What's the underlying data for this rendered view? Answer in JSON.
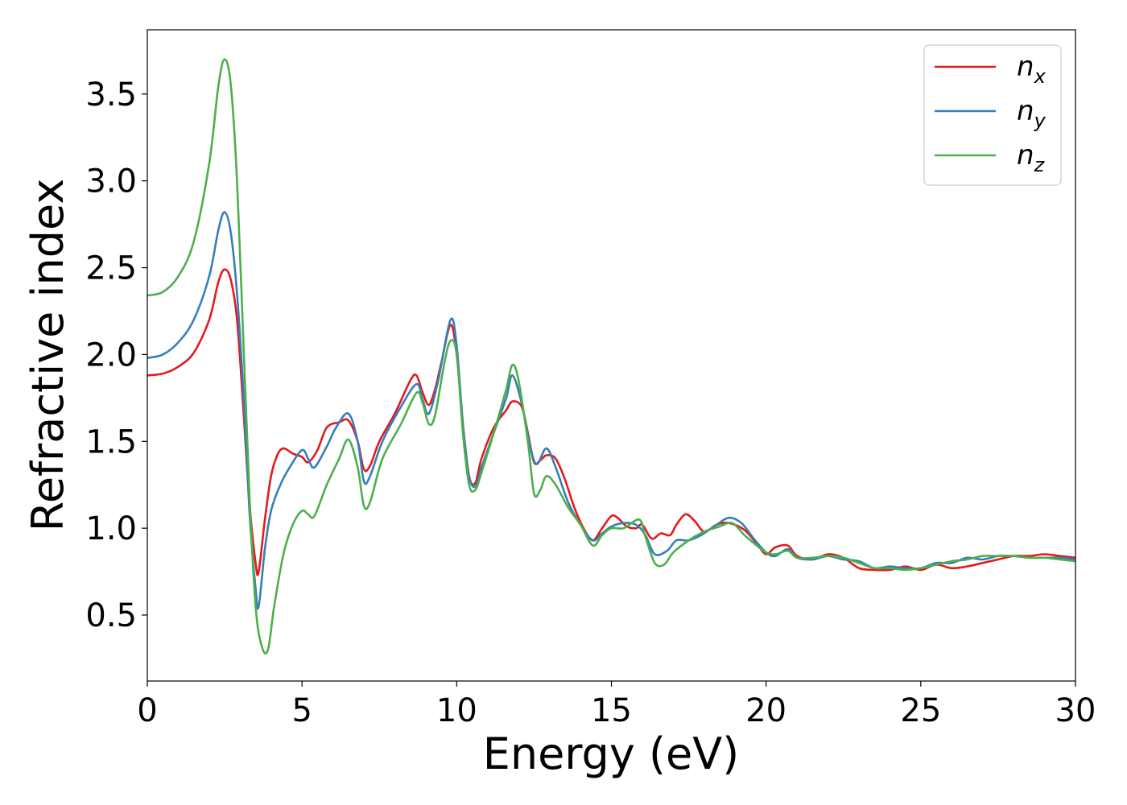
{
  "chart_data": {
    "type": "line",
    "title": "",
    "xlabel": "Energy (eV)",
    "ylabel": "Refractive index",
    "xlim": [
      0,
      30
    ],
    "ylim": [
      0.12,
      3.87
    ],
    "xticks": [
      0,
      5,
      10,
      15,
      20,
      25,
      30
    ],
    "yticks": [
      0.5,
      1.0,
      1.5,
      2.0,
      2.5,
      3.0,
      3.5
    ],
    "xtick_labels": [
      "0",
      "5",
      "10",
      "15",
      "20",
      "25",
      "30"
    ],
    "ytick_labels": [
      "0.5",
      "1.0",
      "1.5",
      "2.0",
      "2.5",
      "3.0",
      "3.5"
    ],
    "grid": false,
    "legend_position": "top-right",
    "series": [
      {
        "name": "n_x",
        "legend_base": "n",
        "legend_sub": "x",
        "color": "#e41a1c",
        "points": [
          [
            0,
            1.88
          ],
          [
            0.5,
            1.89
          ],
          [
            1.0,
            1.93
          ],
          [
            1.5,
            2.01
          ],
          [
            2.0,
            2.2
          ],
          [
            2.3,
            2.42
          ],
          [
            2.5,
            2.49
          ],
          [
            2.7,
            2.43
          ],
          [
            2.9,
            2.2
          ],
          [
            3.1,
            1.7
          ],
          [
            3.3,
            1.15
          ],
          [
            3.5,
            0.8
          ],
          [
            3.6,
            0.75
          ],
          [
            3.8,
            1.05
          ],
          [
            4.0,
            1.3
          ],
          [
            4.2,
            1.42
          ],
          [
            4.4,
            1.46
          ],
          [
            4.7,
            1.43
          ],
          [
            5.0,
            1.41
          ],
          [
            5.2,
            1.38
          ],
          [
            5.5,
            1.45
          ],
          [
            5.8,
            1.58
          ],
          [
            6.2,
            1.61
          ],
          [
            6.5,
            1.62
          ],
          [
            6.8,
            1.5
          ],
          [
            7.0,
            1.34
          ],
          [
            7.2,
            1.36
          ],
          [
            7.5,
            1.5
          ],
          [
            8.0,
            1.66
          ],
          [
            8.5,
            1.85
          ],
          [
            8.7,
            1.88
          ],
          [
            8.9,
            1.78
          ],
          [
            9.1,
            1.71
          ],
          [
            9.3,
            1.8
          ],
          [
            9.5,
            1.95
          ],
          [
            9.8,
            2.17
          ],
          [
            10.0,
            2.0
          ],
          [
            10.2,
            1.6
          ],
          [
            10.4,
            1.3
          ],
          [
            10.6,
            1.26
          ],
          [
            10.8,
            1.4
          ],
          [
            11.2,
            1.58
          ],
          [
            11.6,
            1.68
          ],
          [
            11.8,
            1.73
          ],
          [
            12.1,
            1.7
          ],
          [
            12.3,
            1.55
          ],
          [
            12.5,
            1.38
          ],
          [
            12.7,
            1.39
          ],
          [
            12.9,
            1.42
          ],
          [
            13.2,
            1.4
          ],
          [
            13.5,
            1.28
          ],
          [
            13.8,
            1.12
          ],
          [
            14.1,
            1.0
          ],
          [
            14.4,
            0.93
          ],
          [
            14.7,
            1.0
          ],
          [
            15.0,
            1.07
          ],
          [
            15.2,
            1.06
          ],
          [
            15.5,
            1.01
          ],
          [
            15.8,
            1.0
          ],
          [
            16.0,
            1.02
          ],
          [
            16.3,
            0.94
          ],
          [
            16.6,
            0.97
          ],
          [
            16.9,
            0.96
          ],
          [
            17.1,
            1.02
          ],
          [
            17.4,
            1.08
          ],
          [
            17.7,
            1.04
          ],
          [
            18.0,
            0.98
          ],
          [
            18.4,
            1.02
          ],
          [
            18.8,
            1.03
          ],
          [
            19.3,
            0.99
          ],
          [
            19.7,
            0.91
          ],
          [
            20.0,
            0.85
          ],
          [
            20.3,
            0.89
          ],
          [
            20.7,
            0.9
          ],
          [
            21.0,
            0.84
          ],
          [
            21.5,
            0.82
          ],
          [
            22.0,
            0.85
          ],
          [
            22.5,
            0.83
          ],
          [
            23.0,
            0.77
          ],
          [
            23.5,
            0.76
          ],
          [
            24.0,
            0.76
          ],
          [
            24.5,
            0.78
          ],
          [
            25.0,
            0.76
          ],
          [
            25.5,
            0.79
          ],
          [
            26.0,
            0.77
          ],
          [
            26.5,
            0.78
          ],
          [
            27.0,
            0.8
          ],
          [
            27.5,
            0.82
          ],
          [
            28.0,
            0.84
          ],
          [
            28.5,
            0.84
          ],
          [
            29.0,
            0.85
          ],
          [
            29.5,
            0.84
          ],
          [
            30.0,
            0.83
          ]
        ]
      },
      {
        "name": "n_y",
        "legend_base": "n",
        "legend_sub": "y",
        "color": "#377eb8",
        "points": [
          [
            0,
            1.98
          ],
          [
            0.5,
            2.0
          ],
          [
            1.0,
            2.07
          ],
          [
            1.5,
            2.2
          ],
          [
            2.0,
            2.45
          ],
          [
            2.3,
            2.72
          ],
          [
            2.5,
            2.82
          ],
          [
            2.7,
            2.7
          ],
          [
            2.9,
            2.35
          ],
          [
            3.1,
            1.8
          ],
          [
            3.3,
            1.1
          ],
          [
            3.5,
            0.65
          ],
          [
            3.6,
            0.55
          ],
          [
            3.8,
            0.88
          ],
          [
            4.0,
            1.1
          ],
          [
            4.3,
            1.25
          ],
          [
            4.6,
            1.35
          ],
          [
            5.0,
            1.45
          ],
          [
            5.2,
            1.4
          ],
          [
            5.4,
            1.35
          ],
          [
            5.8,
            1.47
          ],
          [
            6.1,
            1.58
          ],
          [
            6.5,
            1.66
          ],
          [
            6.8,
            1.5
          ],
          [
            7.0,
            1.27
          ],
          [
            7.2,
            1.3
          ],
          [
            7.6,
            1.5
          ],
          [
            8.2,
            1.7
          ],
          [
            8.7,
            1.83
          ],
          [
            8.9,
            1.74
          ],
          [
            9.1,
            1.66
          ],
          [
            9.4,
            1.85
          ],
          [
            9.8,
            2.2
          ],
          [
            10.0,
            2.05
          ],
          [
            10.2,
            1.6
          ],
          [
            10.4,
            1.3
          ],
          [
            10.6,
            1.24
          ],
          [
            10.8,
            1.35
          ],
          [
            11.2,
            1.55
          ],
          [
            11.6,
            1.75
          ],
          [
            11.8,
            1.88
          ],
          [
            12.1,
            1.72
          ],
          [
            12.4,
            1.45
          ],
          [
            12.6,
            1.37
          ],
          [
            12.9,
            1.46
          ],
          [
            13.2,
            1.35
          ],
          [
            13.6,
            1.15
          ],
          [
            14.0,
            1.02
          ],
          [
            14.4,
            0.93
          ],
          [
            14.7,
            0.97
          ],
          [
            15.0,
            1.01
          ],
          [
            15.4,
            1.03
          ],
          [
            15.8,
            1.02
          ],
          [
            16.1,
            0.96
          ],
          [
            16.4,
            0.85
          ],
          [
            16.8,
            0.87
          ],
          [
            17.1,
            0.93
          ],
          [
            17.5,
            0.93
          ],
          [
            17.9,
            0.96
          ],
          [
            18.4,
            1.02
          ],
          [
            18.8,
            1.06
          ],
          [
            19.2,
            1.03
          ],
          [
            19.6,
            0.94
          ],
          [
            20.0,
            0.86
          ],
          [
            20.3,
            0.84
          ],
          [
            20.7,
            0.88
          ],
          [
            21.0,
            0.83
          ],
          [
            21.5,
            0.82
          ],
          [
            22.0,
            0.84
          ],
          [
            22.5,
            0.82
          ],
          [
            23.0,
            0.81
          ],
          [
            23.5,
            0.77
          ],
          [
            24.0,
            0.78
          ],
          [
            24.5,
            0.77
          ],
          [
            25.0,
            0.77
          ],
          [
            25.5,
            0.8
          ],
          [
            26.0,
            0.8
          ],
          [
            26.5,
            0.83
          ],
          [
            27.0,
            0.82
          ],
          [
            27.5,
            0.84
          ],
          [
            28.0,
            0.84
          ],
          [
            28.5,
            0.83
          ],
          [
            29.0,
            0.83
          ],
          [
            29.5,
            0.83
          ],
          [
            30.0,
            0.82
          ]
        ]
      },
      {
        "name": "n_z",
        "legend_base": "n",
        "legend_sub": "z",
        "color": "#4daf4a",
        "points": [
          [
            0,
            2.34
          ],
          [
            0.5,
            2.36
          ],
          [
            1.0,
            2.45
          ],
          [
            1.5,
            2.65
          ],
          [
            2.0,
            3.1
          ],
          [
            2.3,
            3.55
          ],
          [
            2.5,
            3.7
          ],
          [
            2.7,
            3.55
          ],
          [
            2.9,
            3.0
          ],
          [
            3.1,
            2.1
          ],
          [
            3.3,
            1.2
          ],
          [
            3.5,
            0.55
          ],
          [
            3.7,
            0.32
          ],
          [
            3.9,
            0.3
          ],
          [
            4.1,
            0.55
          ],
          [
            4.4,
            0.85
          ],
          [
            4.7,
            1.02
          ],
          [
            5.0,
            1.1
          ],
          [
            5.2,
            1.08
          ],
          [
            5.4,
            1.07
          ],
          [
            5.8,
            1.25
          ],
          [
            6.2,
            1.4
          ],
          [
            6.5,
            1.51
          ],
          [
            6.8,
            1.35
          ],
          [
            7.0,
            1.13
          ],
          [
            7.2,
            1.15
          ],
          [
            7.6,
            1.4
          ],
          [
            8.2,
            1.6
          ],
          [
            8.7,
            1.78
          ],
          [
            8.9,
            1.72
          ],
          [
            9.1,
            1.6
          ],
          [
            9.3,
            1.65
          ],
          [
            9.6,
            1.95
          ],
          [
            9.8,
            2.08
          ],
          [
            10.0,
            2.0
          ],
          [
            10.2,
            1.55
          ],
          [
            10.4,
            1.25
          ],
          [
            10.6,
            1.22
          ],
          [
            10.8,
            1.32
          ],
          [
            11.2,
            1.55
          ],
          [
            11.6,
            1.8
          ],
          [
            11.8,
            1.94
          ],
          [
            12.0,
            1.85
          ],
          [
            12.3,
            1.5
          ],
          [
            12.5,
            1.2
          ],
          [
            12.7,
            1.22
          ],
          [
            12.9,
            1.3
          ],
          [
            13.2,
            1.25
          ],
          [
            13.6,
            1.12
          ],
          [
            14.0,
            1.02
          ],
          [
            14.4,
            0.9
          ],
          [
            14.7,
            0.96
          ],
          [
            15.0,
            1.0
          ],
          [
            15.4,
            1.0
          ],
          [
            15.9,
            1.05
          ],
          [
            16.1,
            0.95
          ],
          [
            16.4,
            0.8
          ],
          [
            16.7,
            0.79
          ],
          [
            17.0,
            0.86
          ],
          [
            17.5,
            0.93
          ],
          [
            18.0,
            0.98
          ],
          [
            18.5,
            1.01
          ],
          [
            18.9,
            1.03
          ],
          [
            19.3,
            0.96
          ],
          [
            19.7,
            0.9
          ],
          [
            20.0,
            0.86
          ],
          [
            20.3,
            0.85
          ],
          [
            20.7,
            0.87
          ],
          [
            21.0,
            0.83
          ],
          [
            21.5,
            0.83
          ],
          [
            22.0,
            0.84
          ],
          [
            22.5,
            0.83
          ],
          [
            23.0,
            0.8
          ],
          [
            23.5,
            0.77
          ],
          [
            24.0,
            0.77
          ],
          [
            24.5,
            0.76
          ],
          [
            25.0,
            0.77
          ],
          [
            25.5,
            0.79
          ],
          [
            26.0,
            0.81
          ],
          [
            26.5,
            0.82
          ],
          [
            27.0,
            0.84
          ],
          [
            27.5,
            0.84
          ],
          [
            28.0,
            0.84
          ],
          [
            28.5,
            0.83
          ],
          [
            29.0,
            0.83
          ],
          [
            29.5,
            0.82
          ],
          [
            30.0,
            0.81
          ]
        ]
      }
    ]
  }
}
